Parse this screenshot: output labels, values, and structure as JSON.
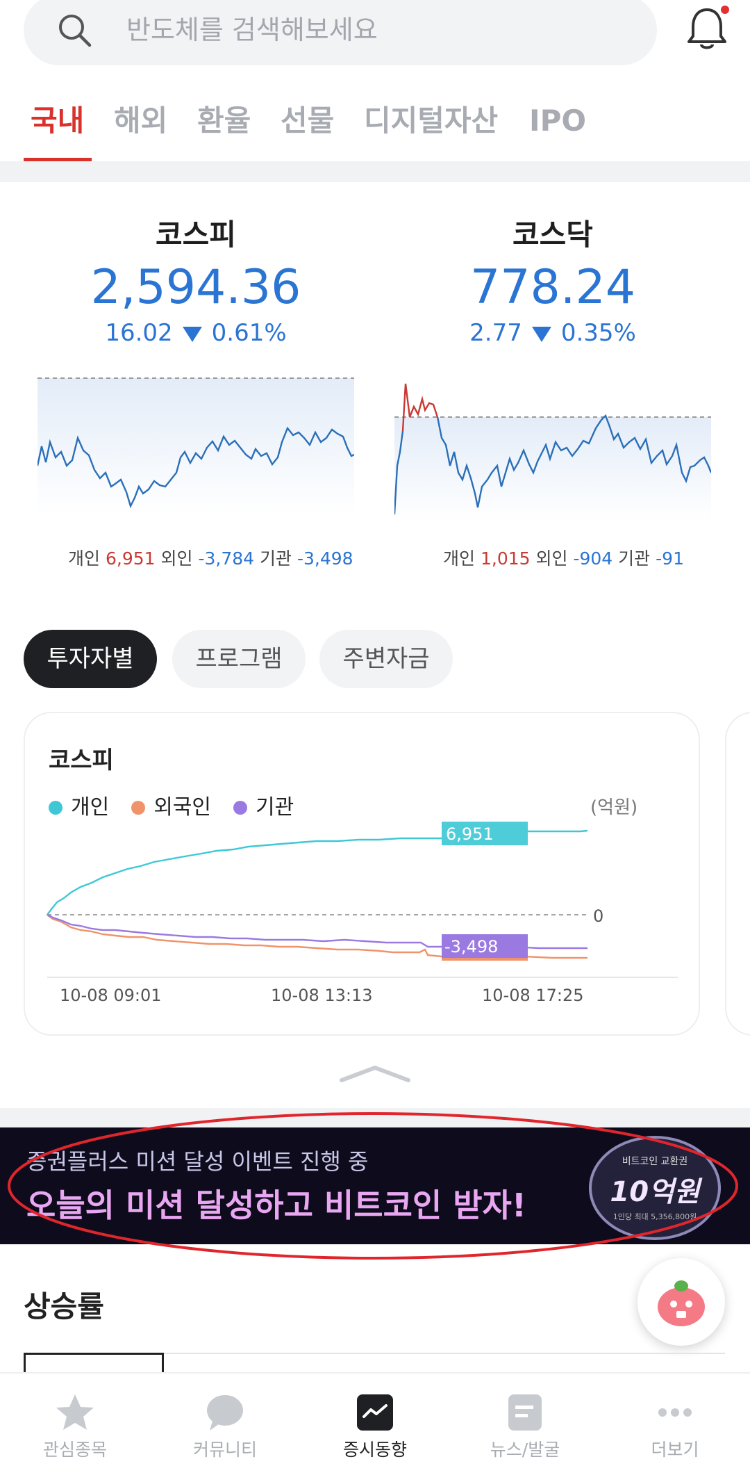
{
  "search": {
    "placeholder": "반도체를 검색해보세요"
  },
  "market_tabs": [
    {
      "label": "국내",
      "active": true
    },
    {
      "label": "해외"
    },
    {
      "label": "환율"
    },
    {
      "label": "선물"
    },
    {
      "label": "디지털자산"
    },
    {
      "label": "IPO"
    }
  ],
  "indices": [
    {
      "name": "코스피",
      "value": "2,594.36",
      "change": "16.02",
      "pct": "0.61%",
      "direction": "down",
      "flows": {
        "individual_label": "개인",
        "individual": "6,951",
        "foreign_label": "외인",
        "foreign": "-3,784",
        "inst_label": "기관",
        "inst": "-3,498"
      }
    },
    {
      "name": "코스닥",
      "value": "778.24",
      "change": "2.77",
      "pct": "0.35%",
      "direction": "down",
      "flows": {
        "individual_label": "개인",
        "individual": "1,015",
        "foreign_label": "외인",
        "foreign": "-904",
        "inst_label": "기관",
        "inst": "-91"
      }
    }
  ],
  "chips": [
    {
      "label": "투자자별",
      "active": true
    },
    {
      "label": "프로그램"
    },
    {
      "label": "주변자금"
    }
  ],
  "investor_chart": {
    "title": "코스피",
    "unit": "(억원)",
    "legend": [
      {
        "name": "개인",
        "color": "#3ec8d6"
      },
      {
        "name": "외국인",
        "color": "#f0936a"
      },
      {
        "name": "기관",
        "color": "#9a7ae0"
      }
    ],
    "zero_label": "0",
    "end_label_individual": "6,951",
    "end_label_inst": "-3,498",
    "x_ticks": [
      "10-08 09:01",
      "10-08 13:13",
      "10-08 17:25"
    ]
  },
  "chart_data": {
    "type": "line",
    "title": "코스피",
    "ylabel": "(억원)",
    "x": [
      "10-08 09:01",
      "10-08 13:13",
      "10-08 17:25"
    ],
    "series": [
      {
        "name": "개인",
        "end_value": 6951
      },
      {
        "name": "외국인",
        "end_value": -3784
      },
      {
        "name": "기관",
        "end_value": -3498
      }
    ]
  },
  "banner": {
    "subtitle": "증권플러스 미션 달성 이벤트 진행 중",
    "title": "오늘의 미션 달성하고 비트코인 받자!",
    "coin_label": "비트코인 교환권",
    "coin_amount": "10억원",
    "coin_note": "1인당 최대 5,356,800원"
  },
  "section": {
    "title": "상승률"
  },
  "bottom_nav": [
    {
      "label": "관심종목",
      "icon": "star-icon"
    },
    {
      "label": "커뮤니티",
      "icon": "chat-icon"
    },
    {
      "label": "증시동향",
      "icon": "market-trend-icon",
      "active": true
    },
    {
      "label": "뉴스/발굴",
      "icon": "news-icon"
    },
    {
      "label": "더보기",
      "icon": "more-icon"
    }
  ],
  "colors": {
    "accent_red": "#d8322c",
    "blue": "#2a74d4",
    "individual": "#3ec8d6",
    "foreign": "#f0936a",
    "institution": "#9a7ae0"
  }
}
